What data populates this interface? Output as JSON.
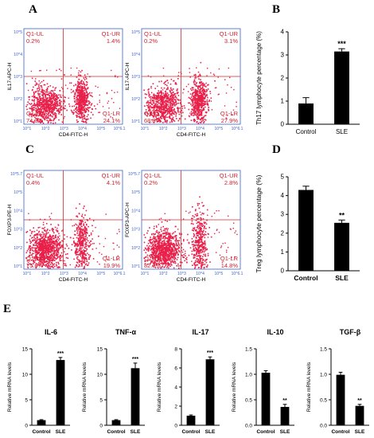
{
  "panels": {
    "A": "A",
    "B": "B",
    "C": "C",
    "D": "D",
    "E": "E"
  },
  "flow_plots": [
    {
      "id": "A1",
      "ylabel": "IL17-APC-H",
      "xlabel": "CD4-FITC-H",
      "yticks": [
        "10^5",
        "10^4",
        "10^3",
        "10^2",
        "10^1"
      ],
      "xticks": [
        "10^1",
        "10^2",
        "10^3",
        "10^4",
        "10^5",
        "10^6.1"
      ],
      "quadrants": {
        "UL": [
          "Q1-UL",
          "0.2%"
        ],
        "UR": [
          "Q1-UR",
          "1.4%"
        ],
        "LL": [
          "Q1-LL",
          "74.3%"
        ],
        "LR": [
          "Q1-LR",
          "24.1%"
        ]
      },
      "cluster": "il17"
    },
    {
      "id": "A2",
      "ylabel": "IL17-APC-H",
      "xlabel": "CD4-FITC-H",
      "yticks": [
        "10^5",
        "10^4",
        "10^3",
        "10^2",
        "10^1"
      ],
      "xticks": [
        "10^1",
        "10^2",
        "10^3",
        "10^4",
        "10^5",
        "10^6.1"
      ],
      "quadrants": {
        "UL": [
          "Q1-UL",
          "0.2%"
        ],
        "UR": [
          "Q1-UR",
          "3.1%"
        ],
        "LL": [
          "Q1-LL",
          "68.8%"
        ],
        "LR": [
          "Q1-LR",
          "27.9%"
        ]
      },
      "cluster": "il17"
    },
    {
      "id": "C1",
      "ylabel": "FOXP3-PE-H",
      "xlabel": "CD4-FITC-H",
      "yticks": [
        "10^5.7",
        "10^5",
        "10^4",
        "10^3",
        "10^2",
        "10^1"
      ],
      "xticks": [
        "10^1",
        "10^2",
        "10^3",
        "10^4",
        "10^5",
        "10^6.1"
      ],
      "quadrants": {
        "UL": [
          "Q1-UL",
          "0.4%"
        ],
        "UR": [
          "Q1-UR",
          "4.1%"
        ],
        "LL": [
          "Q1-LL",
          "75.6%"
        ],
        "LR": [
          "Q1-LR",
          "19.9%"
        ]
      },
      "cluster": "treg"
    },
    {
      "id": "C2",
      "ylabel": "FOXP3-APC-H",
      "xlabel": "CD4-FITC-H",
      "yticks": [
        "10^5.7",
        "10^5",
        "10^4",
        "10^3",
        "10^2",
        "10^1"
      ],
      "xticks": [
        "10^1",
        "10^2",
        "10^3",
        "10^4",
        "10^5",
        "10^6.1"
      ],
      "quadrants": {
        "UL": [
          "Q1-UL",
          "0.2%"
        ],
        "UR": [
          "Q1-UR",
          "2.8%"
        ],
        "LL": [
          "Q1-LL",
          "82.3%"
        ],
        "LR": [
          "Q1-LR",
          "14.8%"
        ]
      },
      "cluster": "treg"
    }
  ],
  "colors": {
    "dots": "#e8204a",
    "frame": "#3a5fcd",
    "gate": "#d22a2a",
    "quad_text": "#d01f2a",
    "bar": "#000000"
  },
  "chart_data": [
    {
      "id": "B",
      "type": "bar",
      "categories": [
        "Control",
        "SLE"
      ],
      "values": [
        0.9,
        3.15
      ],
      "errors": [
        0.25,
        0.12
      ],
      "ylabel": "Th17 lymphocyte percentage (%)",
      "ylim": [
        0,
        4
      ],
      "yticks": [
        "0",
        "1",
        "2",
        "3",
        "4"
      ],
      "sig": "***"
    },
    {
      "id": "D",
      "type": "bar",
      "categories": [
        "Control",
        "SLE"
      ],
      "values": [
        4.3,
        2.55
      ],
      "errors": [
        0.2,
        0.15
      ],
      "ylabel": "Treg lymphocyte percentage (%)",
      "ylim": [
        0,
        5
      ],
      "yticks": [
        "0",
        "1",
        "2",
        "3",
        "4",
        "5"
      ],
      "sig": "**"
    },
    {
      "id": "E1",
      "type": "bar",
      "title": "IL-6",
      "categories": [
        "Control",
        "SLE"
      ],
      "values": [
        1.0,
        12.8
      ],
      "errors": [
        0.1,
        0.5
      ],
      "ylabel": "Relative mRNA levels",
      "ylim": [
        0,
        15
      ],
      "yticks": [
        "0",
        "5",
        "10",
        "15"
      ],
      "sig": "***"
    },
    {
      "id": "E2",
      "type": "bar",
      "title": "TNF-α",
      "categories": [
        "Control",
        "SLE"
      ],
      "values": [
        1.0,
        11.2
      ],
      "errors": [
        0.1,
        1.0
      ],
      "ylabel": "Relative mRNA levels",
      "ylim": [
        0,
        15
      ],
      "yticks": [
        "0",
        "5",
        "10",
        "15"
      ],
      "sig": "***"
    },
    {
      "id": "E3",
      "type": "bar",
      "title": "IL-17",
      "categories": [
        "Control",
        "SLE"
      ],
      "values": [
        1.0,
        6.9
      ],
      "errors": [
        0.08,
        0.25
      ],
      "ylabel": "Relative mRNA levels",
      "ylim": [
        0,
        8
      ],
      "yticks": [
        "0",
        "2",
        "4",
        "6",
        "8"
      ],
      "sig": "***"
    },
    {
      "id": "E4",
      "type": "bar",
      "title": "IL-10",
      "categories": [
        "Control",
        "SLE"
      ],
      "values": [
        1.03,
        0.36
      ],
      "errors": [
        0.04,
        0.05
      ],
      "ylabel": "Relative mRNA levels",
      "ylim": [
        0,
        1.5
      ],
      "yticks": [
        "0.0",
        "0.5",
        "1.0",
        "1.5"
      ],
      "sig": "**"
    },
    {
      "id": "E5",
      "type": "bar",
      "title": "TGF-β",
      "categories": [
        "Control",
        "SLE"
      ],
      "values": [
        0.99,
        0.38
      ],
      "errors": [
        0.05,
        0.03
      ],
      "ylabel": "Relative mRNA levels",
      "ylim": [
        0,
        1.5
      ],
      "yticks": [
        "0.0",
        "0.5",
        "1.0",
        "1.5"
      ],
      "sig": "**"
    }
  ]
}
